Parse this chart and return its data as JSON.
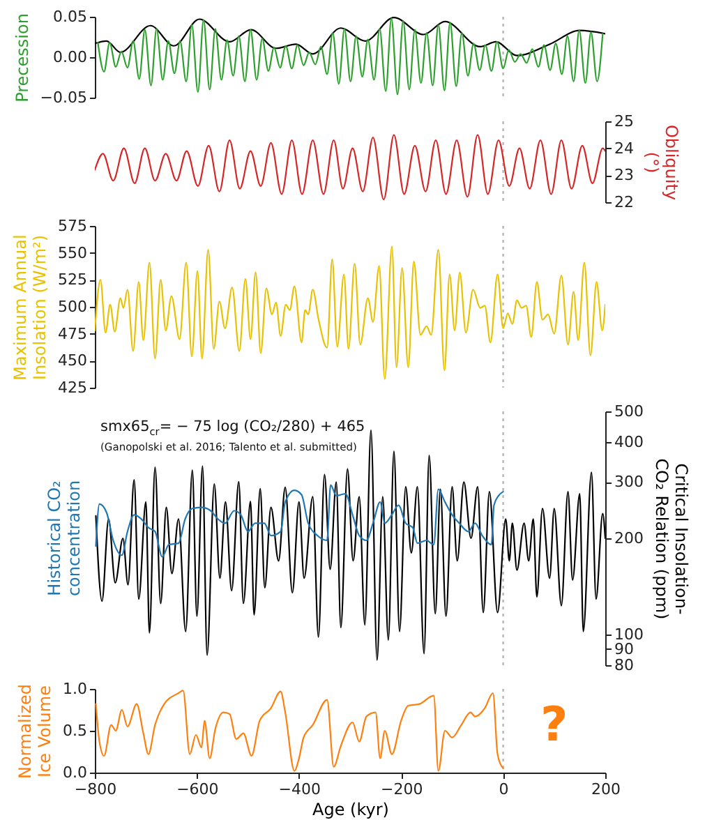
{
  "chart_data": [
    {
      "type": "line",
      "ylabel": "Precession",
      "xlim": [
        -800,
        200
      ],
      "ylim": [
        -0.05,
        0.05
      ],
      "yticks": [
        {
          "value": -0.05,
          "label": "−0.05"
        },
        {
          "value": 0,
          "label": "0.00"
        },
        {
          "value": 0.05,
          "label": "0.05"
        }
      ],
      "tick_labels": "y",
      "ref_lines": [
        {
          "axis": "x",
          "value": 0,
          "color": "#bbbbbb",
          "line_style": "dotted"
        }
      ],
      "series": [
        {
          "color": "#000000",
          "x": [
            -800,
            -777,
            -750,
            -691,
            -645,
            -595,
            -536,
            -494,
            -445,
            -406,
            -373,
            -318,
            -270,
            -214,
            -156,
            -114,
            -45,
            -14,
            27,
            91,
            150,
            200
          ],
          "values": [
            0.017,
            0.02,
            0.006,
            0.039,
            0.014,
            0.047,
            0.019,
            0.034,
            0.011,
            0.016,
            0.004,
            0.036,
            0.02,
            0.049,
            0.028,
            0.044,
            0.013,
            0.019,
            0.002,
            0.016,
            0.033,
            0.029
          ]
        },
        {
          "color": "#2ca02c",
          "x": [
            -794,
            -782,
            -771,
            -759,
            -748,
            -736,
            -725,
            -713,
            -702,
            -690,
            -679,
            -667,
            -656,
            -644,
            -633,
            -621,
            -610,
            -598,
            -587,
            -575,
            -564,
            -552,
            -541,
            -529,
            -518,
            -506,
            -495,
            -483,
            -472,
            -460,
            -449,
            -437,
            -426,
            -414,
            -403,
            -391,
            -380,
            -368,
            -357,
            -345,
            -334,
            -322,
            -311,
            -299,
            -288,
            -276,
            -265,
            -253,
            -242,
            -230,
            -219,
            -207,
            -196,
            -184,
            -173,
            -161,
            -150,
            -138,
            -127,
            -115,
            -104,
            -92,
            -81,
            -69,
            -58,
            -46,
            -35,
            -23,
            -12,
            0,
            11,
            23,
            34,
            46,
            57,
            69,
            80,
            92,
            103,
            115,
            126,
            138,
            149,
            161,
            172,
            184,
            195
          ],
          "values": [
            0.018,
            -0.018,
            0.018,
            -0.012,
            0.007,
            -0.013,
            0.02,
            -0.027,
            0.034,
            -0.035,
            0.035,
            -0.028,
            0.02,
            -0.02,
            0.02,
            -0.03,
            0.04,
            -0.043,
            0.046,
            -0.04,
            0.035,
            -0.028,
            0.021,
            -0.023,
            0.026,
            -0.03,
            0.034,
            -0.028,
            0.023,
            -0.017,
            0.012,
            -0.013,
            0.014,
            -0.014,
            0.015,
            -0.01,
            0.006,
            -0.009,
            0.013,
            -0.021,
            0.03,
            -0.033,
            0.035,
            -0.03,
            0.026,
            -0.024,
            0.022,
            -0.028,
            0.035,
            -0.042,
            0.048,
            -0.046,
            0.045,
            -0.04,
            0.034,
            -0.032,
            0.03,
            -0.035,
            0.04,
            -0.041,
            0.043,
            -0.036,
            0.03,
            -0.023,
            0.017,
            -0.016,
            0.015,
            -0.017,
            0.019,
            -0.014,
            0.009,
            -0.006,
            0.004,
            -0.007,
            0.01,
            -0.012,
            0.015,
            -0.016,
            0.017,
            -0.021,
            0.026,
            -0.03,
            0.033,
            -0.032,
            0.031,
            -0.03,
            0.029
          ]
        }
      ]
    },
    {
      "type": "line",
      "y2label": "Obliquity (°)",
      "xlim": [
        -800,
        200
      ],
      "y2lim": [
        22,
        25
      ],
      "y2ticks": [
        22,
        23,
        24,
        25
      ],
      "tick_labels": "y2",
      "ref_lines": [
        {
          "axis": "x",
          "value": 0,
          "color": "#bbbbbb",
          "line_style": "dotted"
        }
      ],
      "series": [
        {
          "color": "#d62728",
          "axis": "y2",
          "x": [
            -800,
            -784,
            -764,
            -743,
            -722,
            -702,
            -682,
            -661,
            -640,
            -620,
            -598,
            -577,
            -556,
            -536,
            -516,
            -495,
            -475,
            -455,
            -434,
            -414,
            -394,
            -373,
            -352,
            -332,
            -314,
            -295,
            -275,
            -255,
            -234,
            -214,
            -194,
            -173,
            -152,
            -132,
            -112,
            -91,
            -70,
            -50,
            -30,
            -9,
            12,
            32,
            52,
            73,
            94,
            114,
            134,
            155,
            175,
            195,
            200
          ],
          "values": [
            23.2,
            23.8,
            22.8,
            24.0,
            22.7,
            24.0,
            22.8,
            23.8,
            22.8,
            23.9,
            22.6,
            24.1,
            22.4,
            24.3,
            22.5,
            23.9,
            22.6,
            24.2,
            22.3,
            24.3,
            22.3,
            24.3,
            22.3,
            24.3,
            22.5,
            24.0,
            22.4,
            24.4,
            22.1,
            24.5,
            22.3,
            24.1,
            22.4,
            24.3,
            22.3,
            24.3,
            22.2,
            24.5,
            22.3,
            24.3,
            22.6,
            24.0,
            22.5,
            24.3,
            22.3,
            24.3,
            22.5,
            24.1,
            22.7,
            24.0,
            23.9
          ]
        }
      ]
    },
    {
      "type": "line",
      "ylabel": "Maximum Annual Insolation (W/m²)",
      "xlim": [
        -800,
        200
      ],
      "ylim": [
        425,
        575
      ],
      "yticks": [
        425,
        450,
        475,
        500,
        525,
        550,
        575
      ],
      "tick_labels": "y",
      "ref_lines": [
        {
          "axis": "x",
          "value": 0,
          "color": "#bbbbbb",
          "line_style": "dotted"
        }
      ],
      "series": [
        {
          "color": "#e8c100",
          "x": [
            -800,
            -789,
            -779,
            -770,
            -761,
            -750,
            -744,
            -736,
            -725,
            -714,
            -705,
            -693,
            -682,
            -671,
            -661,
            -650,
            -634,
            -621,
            -610,
            -599,
            -590,
            -578,
            -567,
            -556,
            -545,
            -531,
            -517,
            -505,
            -495,
            -485,
            -475,
            -464,
            -453,
            -445,
            -436,
            -426,
            -418,
            -409,
            -395,
            -388,
            -382,
            -373,
            -362,
            -345,
            -335,
            -325,
            -312,
            -303,
            -291,
            -280,
            -265,
            -255,
            -243,
            -232,
            -218,
            -209,
            -198,
            -186,
            -175,
            -162,
            -150,
            -141,
            -127,
            -115,
            -105,
            -95,
            -85,
            -73,
            -59,
            -45,
            -36,
            -25,
            -11,
            0,
            9,
            18,
            27,
            36,
            45,
            55,
            66,
            77,
            88,
            100,
            114,
            127,
            138,
            147,
            159,
            171,
            183,
            194,
            200
          ],
          "values": [
            478,
            525,
            476,
            502,
            477,
            508,
            499,
            516,
            459,
            523,
            469,
            541,
            452,
            525,
            478,
            510,
            470,
            541,
            454,
            533,
            452,
            553,
            461,
            505,
            480,
            518,
            459,
            526,
            470,
            532,
            457,
            517,
            493,
            504,
            473,
            502,
            497,
            519,
            467,
            497,
            493,
            516,
            489,
            462,
            544,
            463,
            530,
            461,
            540,
            465,
            508,
            486,
            538,
            433,
            556,
            444,
            536,
            444,
            542,
            474,
            482,
            474,
            553,
            441,
            530,
            478,
            532,
            476,
            516,
            499,
            501,
            467,
            530,
            480,
            494,
            484,
            506,
            499,
            501,
            472,
            523,
            488,
            493,
            475,
            529,
            465,
            514,
            469,
            541,
            455,
            523,
            478,
            502
          ]
        }
      ]
    },
    {
      "type": "line",
      "ylabel": "Historical CO₂ concentration",
      "y2label": "Critical Insolation-CO₂ Relation (ppm)",
      "xlim": [
        -800,
        200
      ],
      "y2lim": [
        80,
        500
      ],
      "y2ticks": [
        80,
        90,
        100,
        200,
        300,
        400,
        500
      ],
      "log": "y2",
      "tick_labels": "y2",
      "annotations": [
        "smx65$_{cr}$= − 75 log (CO₂/280) + 465",
        "(Ganopolski et al. 2016; Talento et al. submitted)"
      ],
      "ref_lines": [
        {
          "axis": "x",
          "value": 0,
          "color": "#bbbbbb",
          "line_style": "dotted"
        }
      ],
      "series": [
        {
          "color": "#000000",
          "axis": "y2",
          "x": [
            -798,
            -786,
            -773,
            -760,
            -745,
            -735,
            -723,
            -714,
            -700,
            -693,
            -682,
            -671,
            -660,
            -649,
            -636,
            -622,
            -609,
            -600,
            -589,
            -580,
            -566,
            -555,
            -544,
            -532,
            -518,
            -509,
            -495,
            -488,
            -476,
            -467,
            -455,
            -440,
            -427,
            -413,
            -400,
            -390,
            -373,
            -362,
            -350,
            -339,
            -327,
            -318,
            -305,
            -294,
            -282,
            -271,
            -259,
            -247,
            -236,
            -225,
            -214,
            -203,
            -191,
            -180,
            -168,
            -155,
            -145,
            -133,
            -123,
            -112,
            -100,
            -90,
            -77,
            -63,
            -50,
            -39,
            -27,
            -11,
            5,
            12,
            18,
            27,
            41,
            50,
            59,
            66,
            77,
            91,
            100,
            114,
            127,
            136,
            150,
            157,
            173,
            182,
            195,
            200
          ],
          "values": [
            235,
            127,
            230,
            145,
            200,
            143,
            305,
            129,
            260,
            101,
            334,
            125,
            250,
            155,
            230,
            102,
            327,
            114,
            337,
            86,
            296,
            150,
            260,
            137,
            301,
            125,
            261,
            115,
            286,
            140,
            250,
            170,
            289,
            135,
            260,
            150,
            270,
            98,
            317,
            160,
            300,
            105,
            330,
            170,
            270,
            107,
            437,
            83,
            270,
            96,
            375,
            102,
            290,
            180,
            290,
            87,
            364,
            116,
            285,
            114,
            290,
            170,
            300,
            200,
            290,
            117,
            280,
            117,
            230,
            170,
            223,
            159,
            223,
            170,
            230,
            131,
            248,
            150,
            248,
            123,
            280,
            148,
            276,
            102,
            322,
            129,
            239,
            200
          ]
        },
        {
          "color": "#1f77b4",
          "axis": "y2",
          "x": [
            -798,
            -791,
            -777,
            -764,
            -747,
            -736,
            -723,
            -709,
            -695,
            -682,
            -668,
            -655,
            -636,
            -623,
            -609,
            -591,
            -573,
            -559,
            -545,
            -527,
            -514,
            -500,
            -486,
            -468,
            -455,
            -436,
            -427,
            -409,
            -395,
            -382,
            -364,
            -345,
            -338,
            -327,
            -309,
            -295,
            -282,
            -268,
            -255,
            -241,
            -232,
            -218,
            -205,
            -191,
            -177,
            -168,
            -150,
            -136,
            -127,
            -114,
            -100,
            -86,
            -68,
            -55,
            -41,
            -23,
            -18,
            -9,
            0
          ],
          "values": [
            189,
            256,
            241,
            197,
            177,
            210,
            237,
            230,
            216,
            210,
            175,
            191,
            193,
            230,
            248,
            250,
            244,
            230,
            223,
            244,
            237,
            210,
            223,
            223,
            204,
            210,
            260,
            283,
            274,
            223,
            204,
            197,
            294,
            272,
            276,
            237,
            204,
            197,
            223,
            260,
            223,
            237,
            254,
            223,
            216,
            193,
            197,
            191,
            285,
            260,
            237,
            223,
            210,
            223,
            204,
            191,
            254,
            272,
            280
          ]
        }
      ]
    },
    {
      "type": "line",
      "ylabel": "Normalized Ice Volume",
      "xlabel": "Age (kyr)",
      "xlim": [
        -800,
        200
      ],
      "xticks": [
        {
          "value": -800,
          "label": "−800"
        },
        {
          "value": -600,
          "label": "−600"
        },
        {
          "value": -400,
          "label": "−400"
        },
        {
          "value": -200,
          "label": "−200"
        },
        0,
        200
      ],
      "ylim": [
        0,
        1
      ],
      "yticks": [
        {
          "value": 0,
          "label": "0.0"
        },
        {
          "value": 0.5,
          "label": "0.5"
        },
        {
          "value": 1,
          "label": "1.0"
        }
      ],
      "annotations": [
        "?"
      ],
      "ref_lines": [
        {
          "axis": "x",
          "value": 0,
          "color": "#bbbbbb",
          "line_style": "dotted"
        }
      ],
      "series": [
        {
          "color": "#ff7f0e",
          "x": [
            -798,
            -791,
            -782,
            -768,
            -759,
            -747,
            -736,
            -718,
            -705,
            -695,
            -682,
            -664,
            -636,
            -627,
            -614,
            -602,
            -591,
            -585,
            -575,
            -564,
            -548,
            -536,
            -523,
            -509,
            -493,
            -477,
            -455,
            -436,
            -427,
            -409,
            -400,
            -391,
            -373,
            -345,
            -332,
            -318,
            -295,
            -282,
            -268,
            -250,
            -241,
            -232,
            -218,
            -200,
            -186,
            -164,
            -136,
            -127,
            -114,
            -100,
            -82,
            -64,
            -55,
            -36,
            -20,
            -11,
            0
          ],
          "values": [
            0.82,
            0.37,
            0.2,
            0.57,
            0.5,
            0.75,
            0.55,
            0.82,
            0.47,
            0.22,
            0.57,
            0.82,
            0.95,
            0.98,
            0.22,
            0.45,
            0.3,
            0.62,
            0.17,
            0.52,
            0.72,
            0.7,
            0.4,
            0.47,
            0.2,
            0.62,
            0.77,
            0.97,
            0.72,
            0.02,
            0.17,
            0.42,
            0.57,
            0.87,
            0.07,
            0.32,
            0.6,
            0.37,
            0.67,
            0.72,
            0.17,
            0.5,
            0.22,
            0.62,
            0.8,
            0.82,
            0.92,
            0.02,
            0.5,
            0.42,
            0.57,
            0.72,
            0.67,
            0.77,
            0.95,
            0.22,
            0.05
          ]
        }
      ]
    }
  ]
}
